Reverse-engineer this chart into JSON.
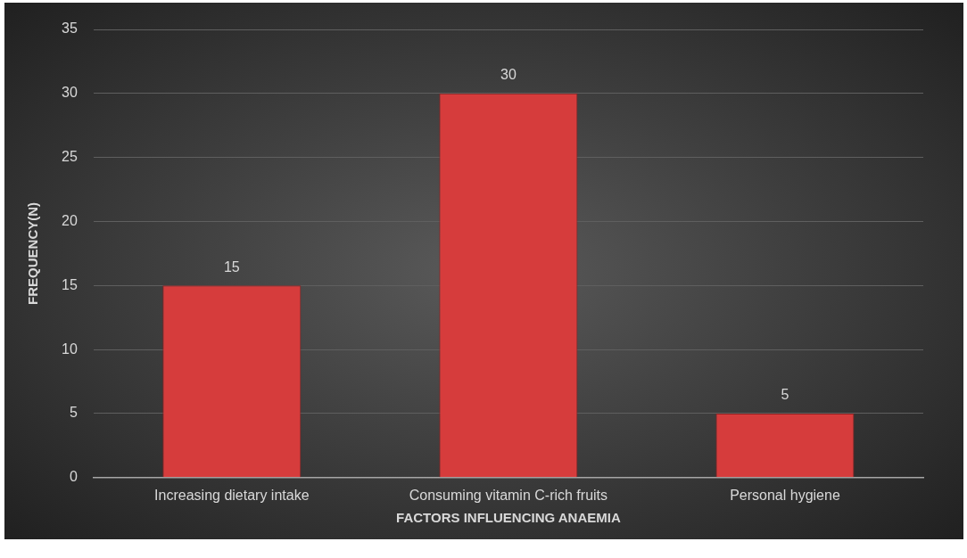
{
  "chart_data": {
    "type": "bar",
    "xlabel": "FACTORS INFLUENCING ANAEMIA",
    "ylabel": "FREQUENCY(N)",
    "categories": [
      "Increasing dietary intake",
      "Consuming vitamin C-rich fruits",
      "Personal hygiene"
    ],
    "values": [
      15,
      30,
      5
    ],
    "color": "#d63c3c",
    "ylim": [
      0,
      35
    ],
    "yticks": [
      0,
      5,
      10,
      15,
      20,
      25,
      30,
      35
    ],
    "grid": "y",
    "data_labels": true
  }
}
